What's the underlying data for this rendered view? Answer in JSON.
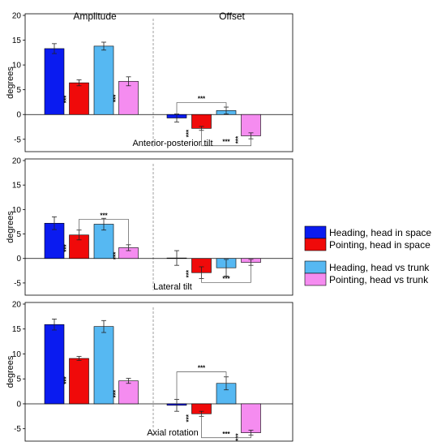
{
  "figure": {
    "column_titles": [
      "Amplitude",
      "Offset"
    ],
    "legend": [
      {
        "label": "Heading, head in space",
        "color": "#0a1bf0"
      },
      {
        "label": "Pointing, head in space",
        "color": "#f00a0a"
      },
      {
        "label": "Heading, head vs trunk",
        "color": "#56b8f2"
      },
      {
        "label": "Pointing, head vs trunk",
        "color": "#f58cf0"
      }
    ],
    "significance_label": "***"
  },
  "chart_data": [
    {
      "type": "bar",
      "title": "Anterior-posterior tilt",
      "ylabel": "degrees",
      "ylim": [
        -7,
        20
      ],
      "yticks": [
        -5,
        0,
        5,
        10,
        15,
        20
      ],
      "groups": [
        "Amplitude",
        "Offset"
      ],
      "series": [
        {
          "name": "Heading, head in space",
          "values": [
            13.3,
            -0.7
          ],
          "errors": [
            1.0,
            0.8
          ]
        },
        {
          "name": "Pointing, head in space",
          "values": [
            6.4,
            -2.8
          ],
          "errors": [
            0.6,
            0.4
          ]
        },
        {
          "name": "Heading, head vs trunk",
          "values": [
            13.8,
            0.8
          ],
          "errors": [
            0.8,
            0.7
          ]
        },
        {
          "name": "Pointing, head vs trunk",
          "values": [
            6.7,
            -4.3
          ],
          "errors": [
            0.9,
            0.6
          ]
        }
      ],
      "significance": [
        {
          "type": "star",
          "group": 0,
          "series": 1
        },
        {
          "type": "star",
          "group": 0,
          "series": 3
        },
        {
          "type": "star",
          "group": 1,
          "series": 1
        },
        {
          "type": "star",
          "group": 1,
          "series": 3
        },
        {
          "type": "bracket",
          "group": 1,
          "from": 0,
          "to": 2,
          "side": "top",
          "level": 2.4
        },
        {
          "type": "bracket",
          "group": 1,
          "from": 1,
          "to": 3,
          "side": "bottom",
          "level": -6.3
        }
      ]
    },
    {
      "type": "bar",
      "title": "Lateral tilt",
      "ylabel": "degrees",
      "ylim": [
        -7,
        20
      ],
      "yticks": [
        -5,
        0,
        5,
        10,
        15,
        20
      ],
      "groups": [
        "Amplitude",
        "Offset"
      ],
      "series": [
        {
          "name": "Heading, head in space",
          "values": [
            7.2,
            0.1
          ],
          "errors": [
            1.3,
            1.5
          ]
        },
        {
          "name": "Pointing, head in space",
          "values": [
            4.8,
            -2.9
          ],
          "errors": [
            1.0,
            1.2
          ]
        },
        {
          "name": "Heading, head vs trunk",
          "values": [
            7.0,
            -1.9
          ],
          "errors": [
            1.2,
            1.7
          ]
        },
        {
          "name": "Pointing, head vs trunk",
          "values": [
            2.2,
            -0.8
          ],
          "errors": [
            0.6,
            0.6
          ]
        }
      ],
      "significance": [
        {
          "type": "star",
          "group": 0,
          "series": 1
        },
        {
          "type": "star",
          "group": 0,
          "series": 3
        },
        {
          "type": "star",
          "group": 1,
          "series": 1
        },
        {
          "type": "bracket",
          "group": 0,
          "from": 1,
          "to": 3,
          "side": "top",
          "level": 8.0
        },
        {
          "type": "bracket",
          "group": 1,
          "from": 1,
          "to": 3,
          "side": "bottom",
          "level": -4.9
        }
      ]
    },
    {
      "type": "bar",
      "title": "Axial rotation",
      "ylabel": "degrees",
      "ylim": [
        -7,
        20
      ],
      "yticks": [
        -5,
        0,
        5,
        10,
        15,
        20
      ],
      "groups": [
        "Amplitude",
        "Offset"
      ],
      "series": [
        {
          "name": "Heading, head in space",
          "values": [
            15.9,
            -0.3
          ],
          "errors": [
            1.1,
            1.2
          ]
        },
        {
          "name": "Pointing, head in space",
          "values": [
            9.1,
            -2.0
          ],
          "errors": [
            0.4,
            0.5
          ]
        },
        {
          "name": "Heading, head vs trunk",
          "values": [
            15.5,
            4.1
          ],
          "errors": [
            1.2,
            1.3
          ]
        },
        {
          "name": "Pointing, head vs trunk",
          "values": [
            4.6,
            -5.8
          ],
          "errors": [
            0.5,
            0.5
          ]
        }
      ],
      "significance": [
        {
          "type": "star",
          "group": 0,
          "series": 1
        },
        {
          "type": "star",
          "group": 0,
          "series": 3
        },
        {
          "type": "star",
          "group": 1,
          "series": 1
        },
        {
          "type": "star",
          "group": 1,
          "series": 3
        },
        {
          "type": "bracket",
          "group": 1,
          "from": 0,
          "to": 2,
          "side": "top",
          "level": 6.4
        },
        {
          "type": "bracket",
          "group": 1,
          "from": 1,
          "to": 3,
          "side": "bottom",
          "level": -6.8
        }
      ]
    }
  ]
}
